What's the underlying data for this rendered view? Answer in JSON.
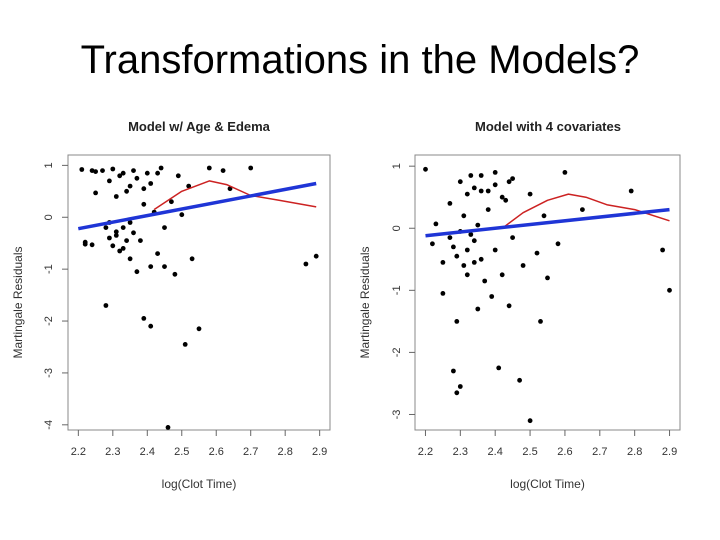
{
  "slide": {
    "title": "Transformations in the Models?"
  },
  "chart_data": [
    {
      "type": "scatter",
      "title": "Model w/ Age & Edema",
      "xlabel": "log(Clot Time)",
      "ylabel": "Martingale Residuals",
      "xlim": [
        2.2,
        2.9
      ],
      "ylim": [
        -4,
        1
      ],
      "xticks": [
        "2.2",
        "2.3",
        "2.4",
        "2.5",
        "2.6",
        "2.7",
        "2.8",
        "2.9"
      ],
      "yticks": [
        "-4",
        "-3",
        "-2",
        "-1",
        "0",
        "1"
      ],
      "grid": false,
      "series": [
        {
          "kind": "points",
          "color": "#000000",
          "points": [
            [
              2.21,
              0.92
            ],
            [
              2.22,
              -0.48
            ],
            [
              2.22,
              -0.52
            ],
            [
              2.24,
              -0.53
            ],
            [
              2.24,
              0.9
            ],
            [
              2.25,
              0.88
            ],
            [
              2.25,
              0.47
            ],
            [
              2.27,
              0.9
            ],
            [
              2.28,
              -1.7
            ],
            [
              2.29,
              -0.1
            ],
            [
              2.3,
              0.93
            ],
            [
              2.31,
              -0.28
            ],
            [
              2.32,
              0.8
            ],
            [
              2.33,
              -0.6
            ],
            [
              2.34,
              0.5
            ],
            [
              2.35,
              -0.8
            ],
            [
              2.36,
              -0.3
            ],
            [
              2.36,
              0.9
            ],
            [
              2.37,
              -1.05
            ],
            [
              2.38,
              -0.45
            ],
            [
              2.39,
              0.25
            ],
            [
              2.39,
              -1.95
            ],
            [
              2.4,
              0.85
            ],
            [
              2.41,
              -2.1
            ],
            [
              2.41,
              -0.95
            ],
            [
              2.42,
              0.1
            ],
            [
              2.43,
              -0.7
            ],
            [
              2.44,
              0.95
            ],
            [
              2.45,
              -0.2
            ],
            [
              2.45,
              -0.95
            ],
            [
              2.46,
              -4.05
            ],
            [
              2.47,
              0.3
            ],
            [
              2.48,
              -1.1
            ],
            [
              2.49,
              0.8
            ],
            [
              2.5,
              0.05
            ],
            [
              2.51,
              -2.45
            ],
            [
              2.52,
              0.6
            ],
            [
              2.53,
              -0.8
            ],
            [
              2.55,
              -2.15
            ],
            [
              2.58,
              0.95
            ],
            [
              2.62,
              0.9
            ],
            [
              2.64,
              0.55
            ],
            [
              2.7,
              0.95
            ],
            [
              2.86,
              -0.9
            ],
            [
              2.89,
              -0.75
            ],
            [
              2.28,
              -0.2
            ],
            [
              2.29,
              -0.4
            ],
            [
              2.3,
              -0.55
            ],
            [
              2.31,
              -0.35
            ],
            [
              2.32,
              -0.65
            ],
            [
              2.33,
              -0.2
            ],
            [
              2.34,
              -0.45
            ],
            [
              2.35,
              -0.1
            ],
            [
              2.29,
              0.7
            ],
            [
              2.31,
              0.4
            ],
            [
              2.33,
              0.85
            ],
            [
              2.35,
              0.6
            ],
            [
              2.37,
              0.75
            ],
            [
              2.39,
              0.55
            ],
            [
              2.41,
              0.65
            ],
            [
              2.43,
              0.85
            ]
          ]
        },
        {
          "kind": "smooth",
          "color": "#cc2222",
          "points": [
            [
              2.42,
              0.15
            ],
            [
              2.5,
              0.5
            ],
            [
              2.58,
              0.7
            ],
            [
              2.63,
              0.63
            ],
            [
              2.7,
              0.42
            ],
            [
              2.78,
              0.33
            ],
            [
              2.89,
              0.2
            ]
          ]
        },
        {
          "kind": "fit",
          "color": "#1f35d6",
          "points": [
            [
              2.2,
              -0.22
            ],
            [
              2.89,
              0.65
            ]
          ]
        }
      ]
    },
    {
      "type": "scatter",
      "title": "Model with 4 covariates",
      "xlabel": "log(Clot Time)",
      "ylabel": "Martingale Residuals",
      "xlim": [
        2.2,
        2.9
      ],
      "ylim": [
        -3,
        1
      ],
      "xticks": [
        "2.2",
        "2.3",
        "2.4",
        "2.5",
        "2.6",
        "2.7",
        "2.8",
        "2.9"
      ],
      "yticks": [
        "-3",
        "-2",
        "-1",
        "0",
        "1"
      ],
      "grid": false,
      "series": [
        {
          "kind": "points",
          "color": "#000000",
          "points": [
            [
              2.2,
              0.95
            ],
            [
              2.22,
              -0.25
            ],
            [
              2.23,
              0.07
            ],
            [
              2.25,
              -0.55
            ],
            [
              2.25,
              -1.05
            ],
            [
              2.27,
              0.4
            ],
            [
              2.28,
              -2.3
            ],
            [
              2.29,
              -1.5
            ],
            [
              2.29,
              -2.65
            ],
            [
              2.3,
              -2.55
            ],
            [
              2.31,
              0.2
            ],
            [
              2.32,
              -0.75
            ],
            [
              2.33,
              0.85
            ],
            [
              2.34,
              -0.2
            ],
            [
              2.35,
              -1.3
            ],
            [
              2.36,
              -0.5
            ],
            [
              2.36,
              0.6
            ],
            [
              2.37,
              -0.85
            ],
            [
              2.38,
              0.3
            ],
            [
              2.39,
              -1.1
            ],
            [
              2.4,
              -0.35
            ],
            [
              2.4,
              0.9
            ],
            [
              2.41,
              -2.25
            ],
            [
              2.42,
              -0.75
            ],
            [
              2.43,
              0.45
            ],
            [
              2.44,
              -1.25
            ],
            [
              2.45,
              -0.15
            ],
            [
              2.45,
              0.8
            ],
            [
              2.47,
              -2.45
            ],
            [
              2.48,
              -0.6
            ],
            [
              2.5,
              0.55
            ],
            [
              2.5,
              -3.1
            ],
            [
              2.52,
              -0.4
            ],
            [
              2.53,
              -1.5
            ],
            [
              2.54,
              0.2
            ],
            [
              2.55,
              -0.8
            ],
            [
              2.58,
              -0.25
            ],
            [
              2.6,
              0.9
            ],
            [
              2.65,
              0.3
            ],
            [
              2.79,
              0.6
            ],
            [
              2.88,
              -0.35
            ],
            [
              2.9,
              -1.0
            ],
            [
              2.27,
              -0.15
            ],
            [
              2.28,
              -0.3
            ],
            [
              2.29,
              -0.45
            ],
            [
              2.3,
              -0.05
            ],
            [
              2.31,
              -0.6
            ],
            [
              2.32,
              -0.35
            ],
            [
              2.33,
              -0.1
            ],
            [
              2.34,
              -0.55
            ],
            [
              2.35,
              0.05
            ],
            [
              2.3,
              0.75
            ],
            [
              2.32,
              0.55
            ],
            [
              2.34,
              0.65
            ],
            [
              2.36,
              0.85
            ],
            [
              2.38,
              0.6
            ],
            [
              2.4,
              0.7
            ],
            [
              2.42,
              0.5
            ],
            [
              2.44,
              0.75
            ]
          ]
        },
        {
          "kind": "smooth",
          "color": "#cc2222",
          "points": [
            [
              2.42,
              0.0
            ],
            [
              2.48,
              0.25
            ],
            [
              2.55,
              0.45
            ],
            [
              2.61,
              0.55
            ],
            [
              2.66,
              0.5
            ],
            [
              2.72,
              0.38
            ],
            [
              2.8,
              0.3
            ],
            [
              2.9,
              0.12
            ]
          ]
        },
        {
          "kind": "fit",
          "color": "#1f35d6",
          "points": [
            [
              2.2,
              -0.12
            ],
            [
              2.9,
              0.3
            ]
          ]
        }
      ]
    }
  ]
}
